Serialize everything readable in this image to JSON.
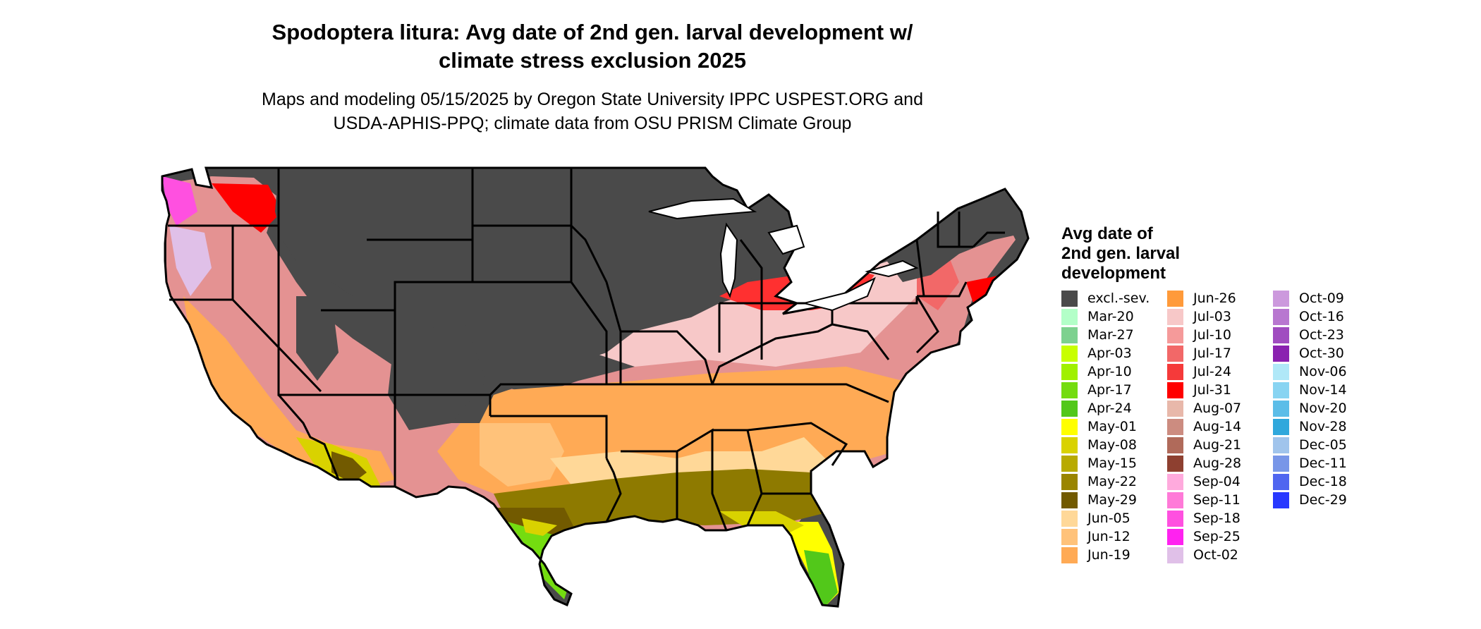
{
  "title_line1": "Spodoptera litura: Avg date of 2nd gen. larval development w/",
  "title_line2": "climate stress exclusion 2025",
  "subtitle_line1": "Maps and modeling 05/15/2025 by Oregon State University IPPC USPEST.ORG and",
  "subtitle_line2": "USDA-APHIS-PPQ; climate data from OSU PRISM Climate Group",
  "legend": {
    "title_line1": "Avg date of",
    "title_line2": "2nd gen. larval",
    "title_line3": "development",
    "columns": [
      [
        {
          "label": "excl.-sev.",
          "color": "#4a4a4a"
        },
        {
          "label": "Mar-20",
          "color": "#b3ffc8"
        },
        {
          "label": "Mar-27",
          "color": "#7dd18f"
        },
        {
          "label": "Apr-03",
          "color": "#c8ff00"
        },
        {
          "label": "Apr-10",
          "color": "#a0f000"
        },
        {
          "label": "Apr-17",
          "color": "#74dc10"
        },
        {
          "label": "Apr-24",
          "color": "#52c81a"
        },
        {
          "label": "May-01",
          "color": "#ffff00"
        },
        {
          "label": "May-08",
          "color": "#d9d200"
        },
        {
          "label": "May-15",
          "color": "#b8aa00"
        },
        {
          "label": "May-22",
          "color": "#9a8500"
        },
        {
          "label": "May-29",
          "color": "#725a00"
        },
        {
          "label": "Jun-05",
          "color": "#ffd898"
        },
        {
          "label": "Jun-12",
          "color": "#ffc27a"
        },
        {
          "label": "Jun-19",
          "color": "#ffaa55"
        }
      ],
      [
        {
          "label": "Jun-26",
          "color": "#ff9a3a"
        },
        {
          "label": "Jul-03",
          "color": "#f7c8c8"
        },
        {
          "label": "Jul-10",
          "color": "#f59a9a"
        },
        {
          "label": "Jul-17",
          "color": "#f26868"
        },
        {
          "label": "Jul-24",
          "color": "#f53a3a"
        },
        {
          "label": "Jul-31",
          "color": "#ff0000"
        },
        {
          "label": "Aug-07",
          "color": "#e8b8aa"
        },
        {
          "label": "Aug-14",
          "color": "#cc8c80"
        },
        {
          "label": "Aug-21",
          "color": "#b06a5a"
        },
        {
          "label": "Aug-28",
          "color": "#8e4030"
        },
        {
          "label": "Sep-04",
          "color": "#ffaadd"
        },
        {
          "label": "Sep-11",
          "color": "#ff7ad8"
        },
        {
          "label": "Sep-18",
          "color": "#ff50e0"
        },
        {
          "label": "Sep-25",
          "color": "#ff22f0"
        },
        {
          "label": "Oct-02",
          "color": "#e0c0e8"
        }
      ],
      [
        {
          "label": "Oct-09",
          "color": "#cc99dd"
        },
        {
          "label": "Oct-16",
          "color": "#b877d0"
        },
        {
          "label": "Oct-23",
          "color": "#a04cc0"
        },
        {
          "label": "Oct-30",
          "color": "#8a22b0"
        },
        {
          "label": "Nov-06",
          "color": "#b0e8f8"
        },
        {
          "label": "Nov-14",
          "color": "#88d4f2"
        },
        {
          "label": "Nov-20",
          "color": "#5cbde8"
        },
        {
          "label": "Nov-28",
          "color": "#30a8dc"
        },
        {
          "label": "Dec-05",
          "color": "#a0c4ec"
        },
        {
          "label": "Dec-11",
          "color": "#7896e8"
        },
        {
          "label": "Dec-18",
          "color": "#5066f0"
        },
        {
          "label": "Dec-29",
          "color": "#2838ff"
        }
      ]
    ]
  }
}
